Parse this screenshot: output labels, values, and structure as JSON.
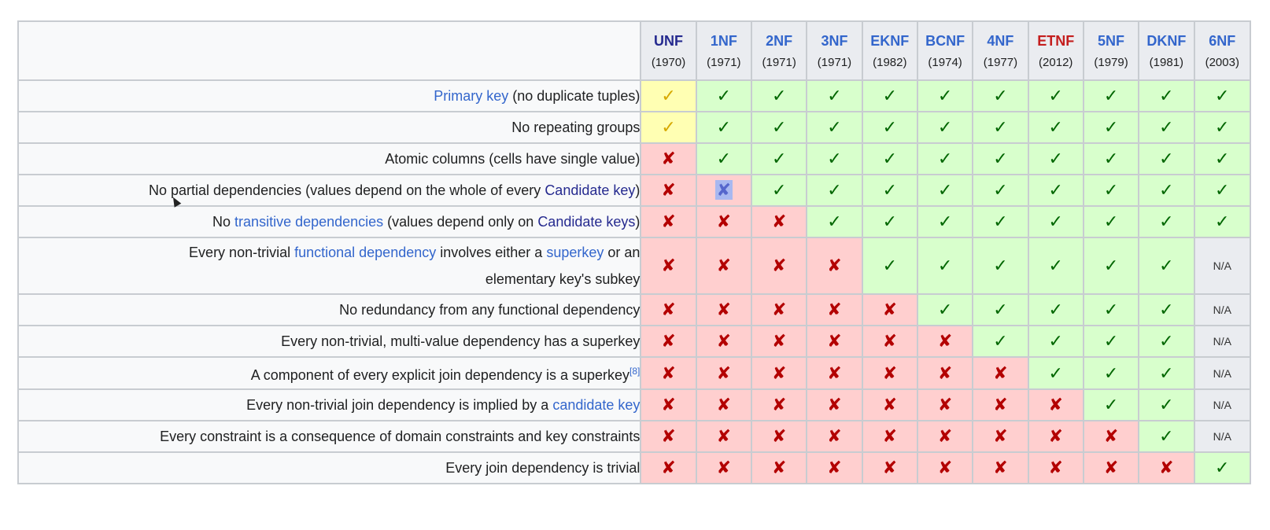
{
  "columns": [
    {
      "name": "UNF",
      "year": "(1970)",
      "color": "dark"
    },
    {
      "name": "1NF",
      "year": "(1971)",
      "color": "blue"
    },
    {
      "name": "2NF",
      "year": "(1971)",
      "color": "blue"
    },
    {
      "name": "3NF",
      "year": "(1971)",
      "color": "blue"
    },
    {
      "name": "EKNF",
      "year": "(1982)",
      "color": "blue"
    },
    {
      "name": "BCNF",
      "year": "(1974)",
      "color": "blue"
    },
    {
      "name": "4NF",
      "year": "(1977)",
      "color": "blue"
    },
    {
      "name": "ETNF",
      "year": "(2012)",
      "color": "red"
    },
    {
      "name": "5NF",
      "year": "(1979)",
      "color": "blue"
    },
    {
      "name": "DKNF",
      "year": "(1981)",
      "color": "blue"
    },
    {
      "name": "6NF",
      "year": "(2003)",
      "color": "blue"
    }
  ],
  "symbols": {
    "yes": "✓",
    "no": "✘",
    "na": "N/A"
  },
  "rows": [
    {
      "criterion": [
        {
          "t": "Primary key",
          "link": true
        },
        {
          "t": " (no duplicate tuples)"
        }
      ],
      "cells": [
        "partial",
        "yes",
        "yes",
        "yes",
        "yes",
        "yes",
        "yes",
        "yes",
        "yes",
        "yes",
        "yes"
      ]
    },
    {
      "criterion": [
        {
          "t": "No repeating groups"
        }
      ],
      "cells": [
        "partial",
        "yes",
        "yes",
        "yes",
        "yes",
        "yes",
        "yes",
        "yes",
        "yes",
        "yes",
        "yes"
      ]
    },
    {
      "criterion": [
        {
          "t": "Atomic columns (cells have single value)"
        }
      ],
      "cells": [
        "no",
        "yes",
        "yes",
        "yes",
        "yes",
        "yes",
        "yes",
        "yes",
        "yes",
        "yes",
        "yes"
      ]
    },
    {
      "criterion": [
        {
          "t": "No partial dependencies (values depend on the whole of every "
        },
        {
          "t": "Candidate key",
          "link": "dk"
        },
        {
          "t": ")"
        }
      ],
      "cells": [
        "no",
        "no-sel",
        "yes",
        "yes",
        "yes",
        "yes",
        "yes",
        "yes",
        "yes",
        "yes",
        "yes"
      ]
    },
    {
      "criterion": [
        {
          "t": "No "
        },
        {
          "t": "transitive dependencies",
          "link": true
        },
        {
          "t": " (values depend only on "
        },
        {
          "t": "Candidate keys",
          "link": "dk"
        },
        {
          "t": ")"
        }
      ],
      "cells": [
        "no",
        "no",
        "no",
        "yes",
        "yes",
        "yes",
        "yes",
        "yes",
        "yes",
        "yes",
        "yes"
      ]
    },
    {
      "criterion": [
        {
          "t": "Every non-trivial "
        },
        {
          "t": "functional dependency",
          "link": true
        },
        {
          "t": " involves either a "
        },
        {
          "t": "superkey",
          "link": true
        },
        {
          "t": " or an"
        },
        {
          "br": true
        },
        {
          "t": "elementary key's subkey"
        }
      ],
      "tall": true,
      "cells": [
        "no",
        "no",
        "no",
        "no",
        "yes",
        "yes",
        "yes",
        "yes",
        "yes",
        "yes",
        "na"
      ]
    },
    {
      "criterion": [
        {
          "t": "No redundancy from any functional dependency"
        }
      ],
      "cells": [
        "no",
        "no",
        "no",
        "no",
        "no",
        "yes",
        "yes",
        "yes",
        "yes",
        "yes",
        "na"
      ]
    },
    {
      "criterion": [
        {
          "t": "Every non-trivial, multi-value dependency has a superkey"
        }
      ],
      "cells": [
        "no",
        "no",
        "no",
        "no",
        "no",
        "no",
        "yes",
        "yes",
        "yes",
        "yes",
        "na"
      ]
    },
    {
      "criterion": [
        {
          "t": "A component of every explicit join dependency is a superkey"
        },
        {
          "t": "[8]",
          "sup": true
        }
      ],
      "cells": [
        "no",
        "no",
        "no",
        "no",
        "no",
        "no",
        "no",
        "yes",
        "yes",
        "yes",
        "na"
      ]
    },
    {
      "criterion": [
        {
          "t": "Every non-trivial join dependency is implied by a "
        },
        {
          "t": "candidate key",
          "link": true
        }
      ],
      "cells": [
        "no",
        "no",
        "no",
        "no",
        "no",
        "no",
        "no",
        "no",
        "yes",
        "yes",
        "na"
      ]
    },
    {
      "criterion": [
        {
          "t": "Every constraint is a consequence of domain constraints and key constraints"
        }
      ],
      "cells": [
        "no",
        "no",
        "no",
        "no",
        "no",
        "no",
        "no",
        "no",
        "no",
        "yes",
        "na"
      ]
    },
    {
      "criterion": [
        {
          "t": "Every join dependency is trivial"
        }
      ],
      "cells": [
        "no",
        "no",
        "no",
        "no",
        "no",
        "no",
        "no",
        "no",
        "no",
        "no",
        "yes"
      ]
    }
  ]
}
